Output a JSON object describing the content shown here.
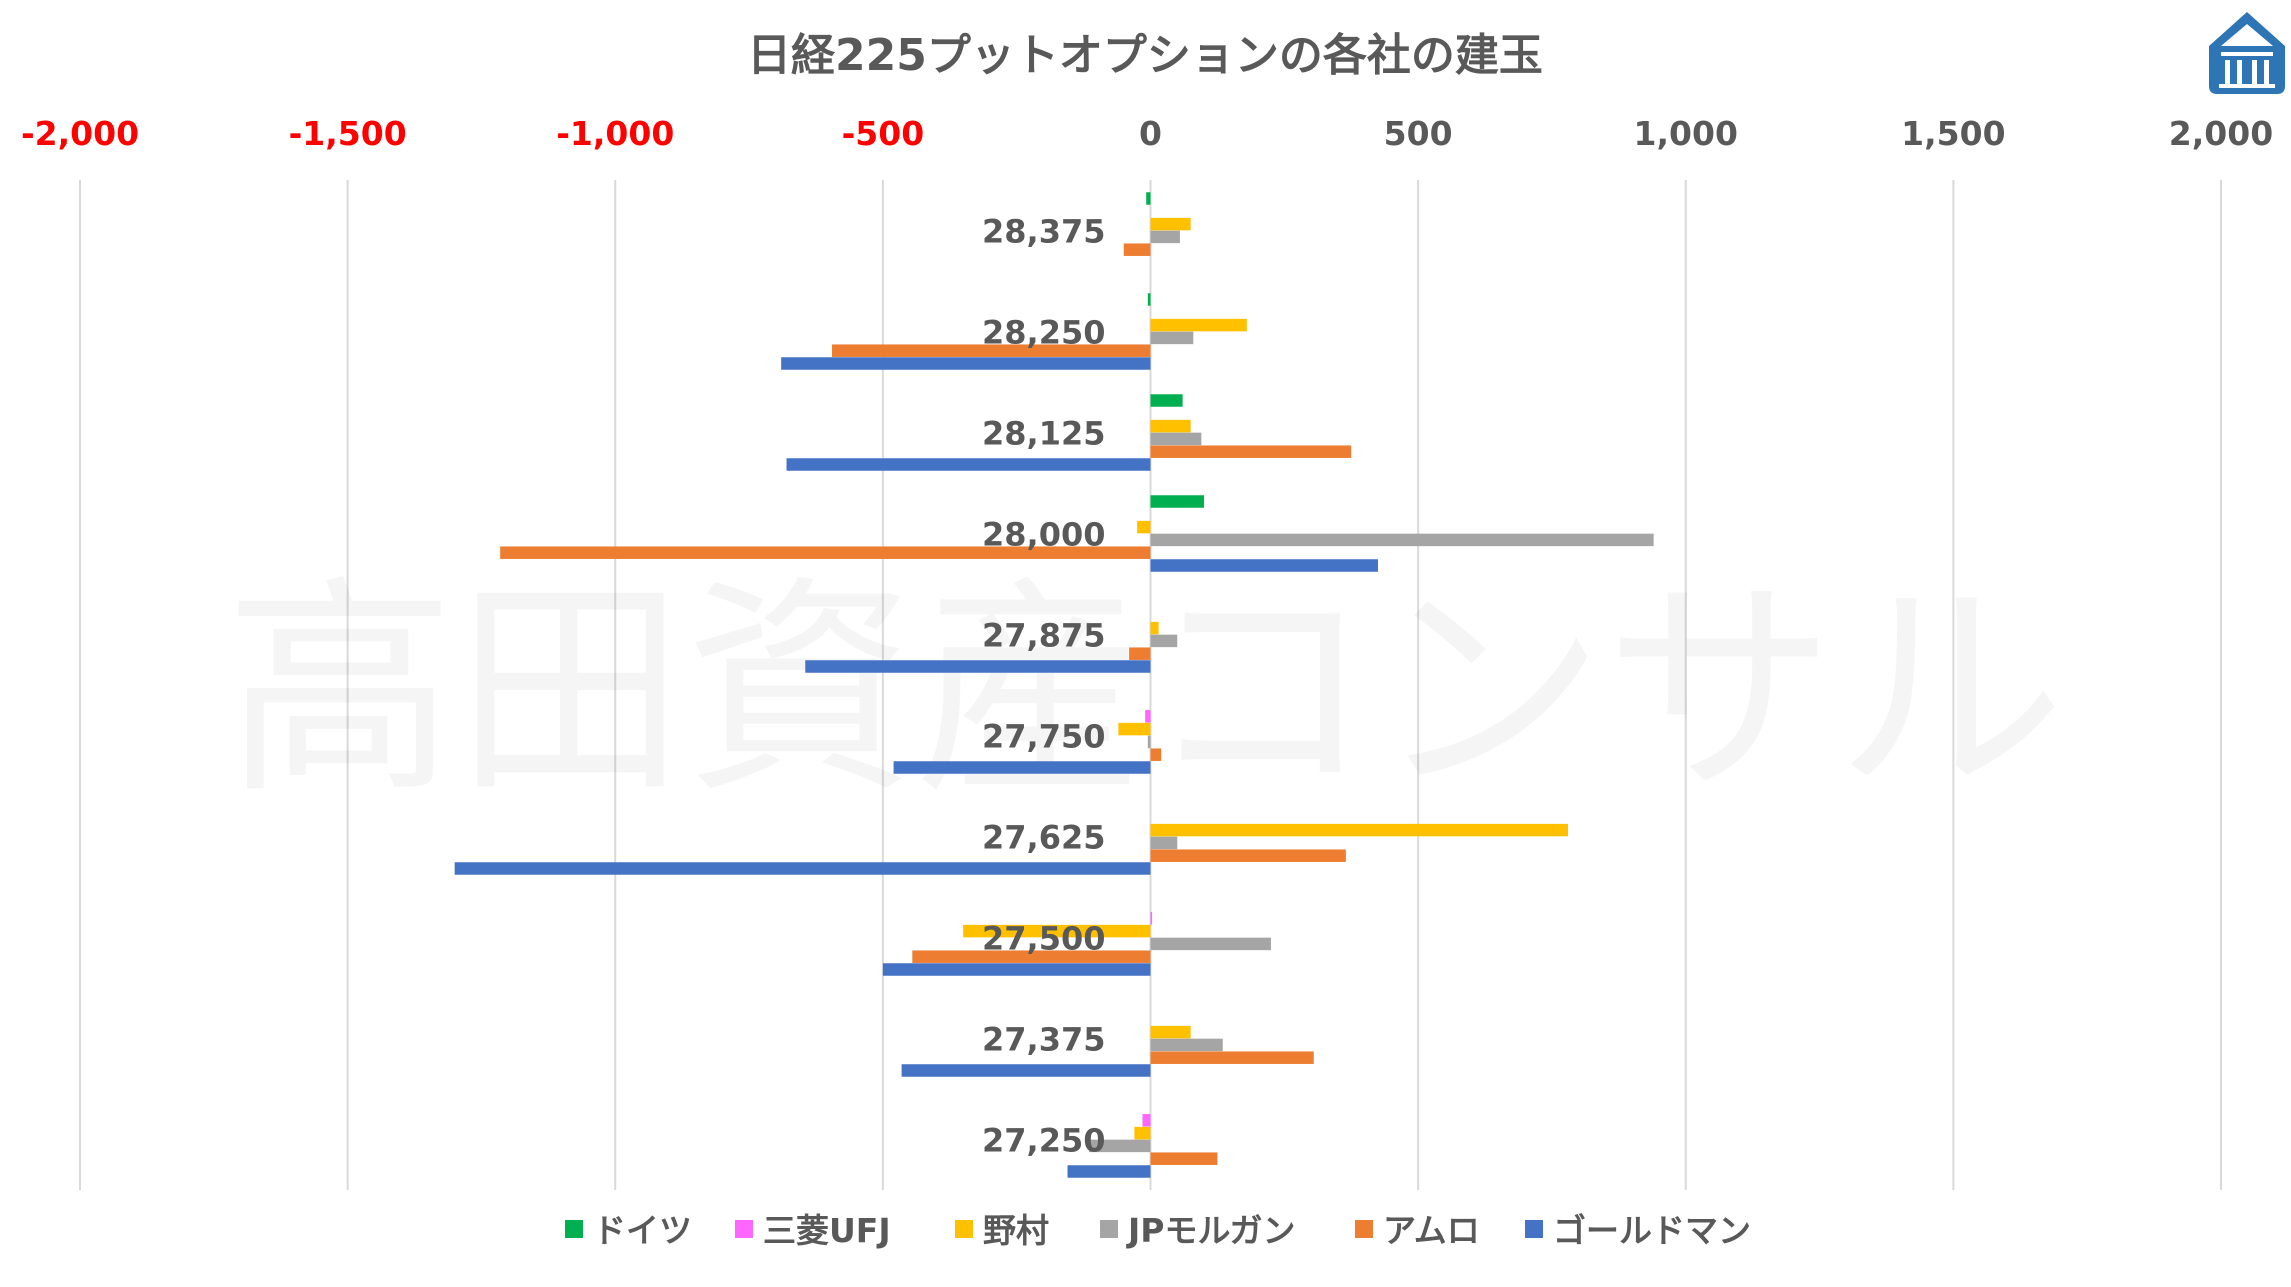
{
  "chart_data": {
    "type": "bar",
    "orientation": "horizontal",
    "title": "日経225プットオプションの各社の建玉",
    "xlim": [
      -2000,
      2000
    ],
    "x_ticks": [
      {
        "value": -2000,
        "label": "-2,000"
      },
      {
        "value": -1500,
        "label": "-1,500"
      },
      {
        "value": -1000,
        "label": "-1,000"
      },
      {
        "value": -500,
        "label": "-500"
      },
      {
        "value": 0,
        "label": "0"
      },
      {
        "value": 500,
        "label": "500"
      },
      {
        "value": 1000,
        "label": "1,000"
      },
      {
        "value": 1500,
        "label": "1,500"
      },
      {
        "value": 2000,
        "label": "2,000"
      }
    ],
    "negative_tick_color": "#ff0000",
    "positive_tick_color": "#595959",
    "grid": true,
    "legend_position": "bottom",
    "categories": [
      "28,375",
      "28,250",
      "28,125",
      "28,000",
      "27,875",
      "27,750",
      "27,625",
      "27,500",
      "27,375",
      "27,250"
    ],
    "series": [
      {
        "name": "ドイツ",
        "color": "#00b050",
        "values": [
          -8,
          -5,
          60,
          100,
          0,
          0,
          0,
          0,
          0,
          0
        ]
      },
      {
        "name": "三菱UFJ",
        "color": "#ff66ff",
        "values": [
          0,
          0,
          0,
          0,
          0,
          -10,
          0,
          3,
          0,
          -15
        ]
      },
      {
        "name": "野村",
        "color": "#ffc000",
        "values": [
          75,
          180,
          75,
          -25,
          15,
          -60,
          780,
          -350,
          75,
          -30
        ]
      },
      {
        "name": "JPモルガン",
        "color": "#a5a5a5",
        "values": [
          55,
          80,
          95,
          940,
          50,
          -5,
          50,
          225,
          135,
          -115
        ]
      },
      {
        "name": "アムロ",
        "color": "#ed7d31",
        "values": [
          -50,
          -595,
          375,
          -1215,
          -40,
          20,
          365,
          -445,
          305,
          125
        ]
      },
      {
        "name": "ゴールドマン",
        "color": "#4472c4",
        "values": [
          0,
          -690,
          -680,
          425,
          -645,
          -480,
          -1300,
          -500,
          -465,
          -155
        ]
      }
    ]
  },
  "watermark": "高田資産コンサル"
}
